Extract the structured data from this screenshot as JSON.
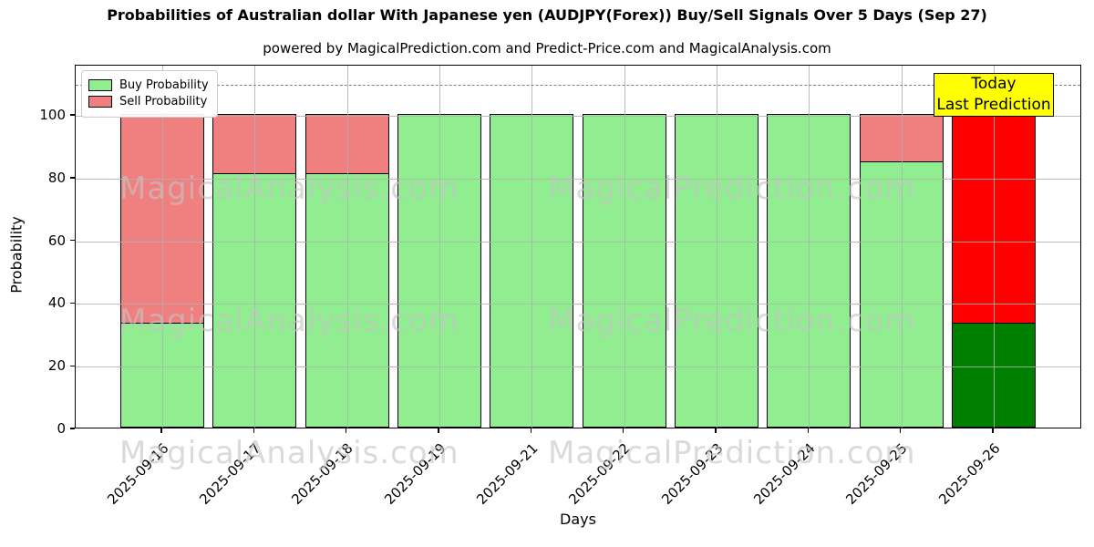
{
  "chart_data": {
    "type": "bar",
    "stacked": true,
    "title": "Probabilities of Australian dollar With Japanese yen (AUDJPY(Forex)) Buy/Sell Signals Over 5 Days (Sep 27)",
    "subtitle": "powered by MagicalPrediction.com and Predict-Price.com and MagicalAnalysis.com",
    "xlabel": "Days",
    "ylabel": "Probability",
    "ylim": [
      0,
      116
    ],
    "yticks": [
      0,
      20,
      40,
      60,
      80,
      100
    ],
    "dashed_line_y": 110,
    "categories": [
      "2025-09-16",
      "2025-09-17",
      "2025-09-18",
      "2025-09-19",
      "2025-09-21",
      "2025-09-22",
      "2025-09-23",
      "2025-09-24",
      "2025-09-25",
      "2025-09-26"
    ],
    "series": [
      {
        "name": "Buy Probability",
        "values": [
          33.33,
          81,
          81,
          100,
          100,
          100,
          100,
          100,
          85,
          33.33
        ]
      },
      {
        "name": "Sell Probability",
        "values": [
          66.67,
          19,
          19,
          0,
          0,
          0,
          0,
          0,
          15,
          66.67
        ]
      }
    ],
    "today_index": 9,
    "colors": {
      "buy": "#90EE90",
      "sell": "#F08080",
      "today_buy": "#008000",
      "today_sell": "#FF0000",
      "annotation_bg": "#FFFF00",
      "grid": "#b0b0b0",
      "dashed_line": "#7f7f7f"
    },
    "legend": [
      {
        "label": "Buy Probability",
        "color": "#90EE90"
      },
      {
        "label": "Sell Probability",
        "color": "#F08080"
      }
    ],
    "legend_position": "upper left",
    "grid": true,
    "annotation": {
      "line1": "Today",
      "line2": "Last Prediction"
    },
    "watermarks": [
      "MagicalAnalysis.com",
      "MagicalPrediction.com"
    ]
  }
}
